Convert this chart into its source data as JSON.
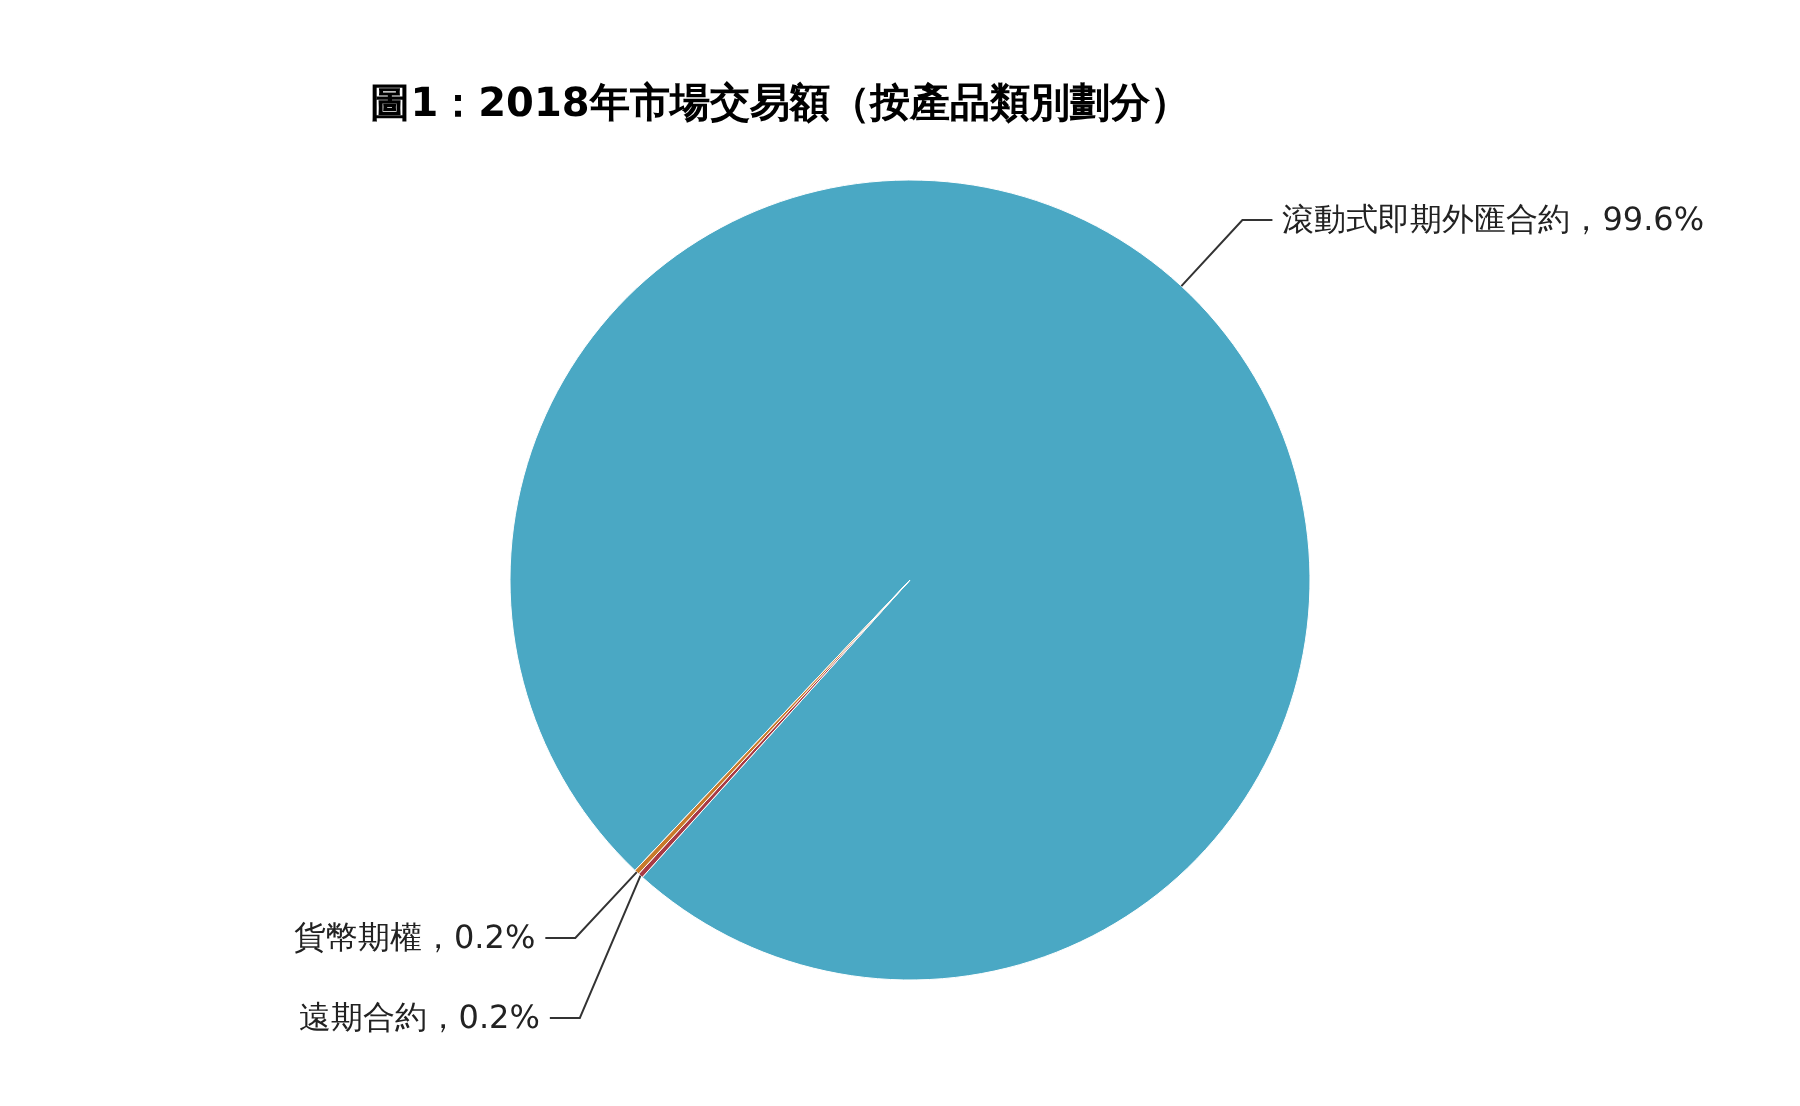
{
  "chart_data": {
    "type": "pie",
    "title": "圖1：2018年市場交易額（按產品類別劃分）",
    "categories": [
      "滾動式即期外匯合約",
      "遠期合約",
      "貨幣期權"
    ],
    "values": [
      99.6,
      0.2,
      0.2
    ],
    "colors": [
      "#4aa8c4",
      "#a83a45",
      "#c87a2a"
    ],
    "value_labels": [
      "，99.6%",
      "，0.2%",
      "，0.2%"
    ]
  }
}
